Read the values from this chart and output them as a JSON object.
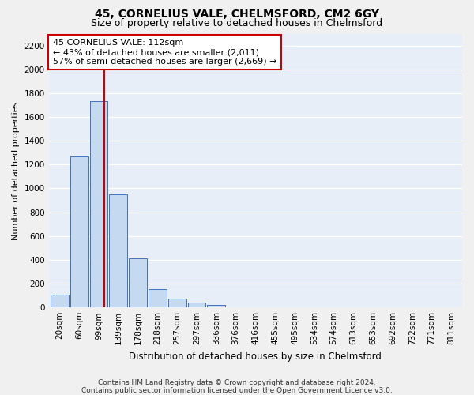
{
  "title": "45, CORNELIUS VALE, CHELMSFORD, CM2 6GY",
  "subtitle": "Size of property relative to detached houses in Chelmsford",
  "xlabel": "Distribution of detached houses by size in Chelmsford",
  "ylabel": "Number of detached properties",
  "footer_line1": "Contains HM Land Registry data © Crown copyright and database right 2024.",
  "footer_line2": "Contains public sector information licensed under the Open Government Licence v3.0.",
  "bar_labels": [
    "20sqm",
    "60sqm",
    "99sqm",
    "139sqm",
    "178sqm",
    "218sqm",
    "257sqm",
    "297sqm",
    "336sqm",
    "376sqm",
    "416sqm",
    "455sqm",
    "495sqm",
    "534sqm",
    "574sqm",
    "613sqm",
    "653sqm",
    "692sqm",
    "732sqm",
    "771sqm",
    "811sqm"
  ],
  "bar_values": [
    110,
    1270,
    1730,
    950,
    415,
    155,
    75,
    42,
    22,
    0,
    0,
    0,
    0,
    0,
    0,
    0,
    0,
    0,
    0,
    0,
    0
  ],
  "bar_color": "#c5d9f0",
  "bar_edge_color": "#4472c4",
  "vline_color": "#cc0000",
  "vline_pos": 2.3,
  "annotation_text": "45 CORNELIUS VALE: 112sqm\n← 43% of detached houses are smaller (2,011)\n57% of semi-detached houses are larger (2,669) →",
  "annotation_box_color": "#ffffff",
  "annotation_box_edge_color": "#cc0000",
  "ylim": [
    0,
    2300
  ],
  "yticks": [
    0,
    200,
    400,
    600,
    800,
    1000,
    1200,
    1400,
    1600,
    1800,
    2000,
    2200
  ],
  "bg_color": "#e8eef8",
  "fig_bg_color": "#f0f0f0",
  "grid_color": "#ffffff",
  "title_fontsize": 10,
  "subtitle_fontsize": 9,
  "xlabel_fontsize": 8.5,
  "ylabel_fontsize": 8,
  "tick_fontsize": 7.5,
  "annotation_fontsize": 8,
  "footer_fontsize": 6.5
}
